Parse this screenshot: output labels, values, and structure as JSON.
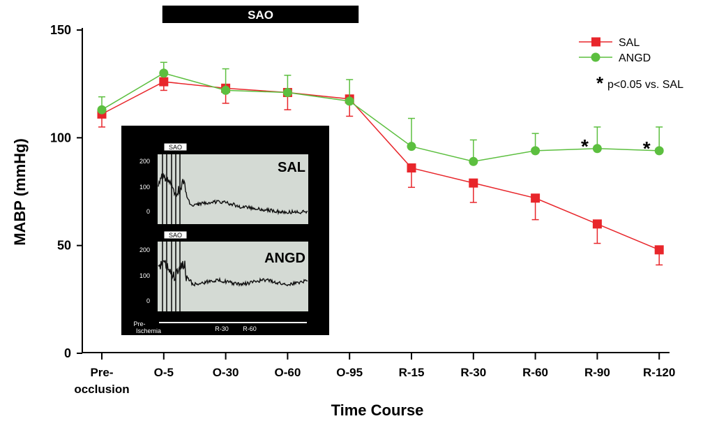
{
  "chart_data": {
    "type": "line",
    "title": "",
    "xlabel": "Time Course",
    "ylabel": "MABP (mmHg)",
    "ylim": [
      0,
      150
    ],
    "yticks": [
      "0",
      "50",
      "100",
      "150"
    ],
    "categories": [
      [
        "Pre-",
        "occlusion"
      ],
      [
        "O-5"
      ],
      [
        "O-30"
      ],
      [
        "O-60"
      ],
      [
        "O-95"
      ],
      [
        "R-15"
      ],
      [
        "R-30"
      ],
      [
        "R-60"
      ],
      [
        "R-90"
      ],
      [
        "R-120"
      ]
    ],
    "occlusion_bar": {
      "label": "SAO",
      "from_index": 1,
      "to_index": 4
    },
    "legend": {
      "placement": "top-right",
      "significance_note": "p<0.05 vs. SAL",
      "asterisk": "*"
    },
    "significant_indices": [
      8,
      9
    ],
    "series": [
      {
        "name": "SAL",
        "color": "#e8262b",
        "marker": "square",
        "values": [
          111,
          126,
          123,
          121,
          118,
          86,
          79,
          72,
          60,
          48
        ],
        "error": [
          6,
          4,
          7,
          8,
          8,
          9,
          9,
          10,
          9,
          7
        ]
      },
      {
        "name": "ANGD",
        "color": "#5cbf3f",
        "marker": "circle",
        "values": [
          113,
          130,
          122,
          121,
          117,
          96,
          89,
          94,
          95,
          94
        ],
        "error": [
          6,
          5,
          10,
          8,
          10,
          13,
          10,
          8,
          10,
          11
        ]
      }
    ]
  },
  "inset": {
    "panels": [
      {
        "title": "SAL",
        "tag": "SAO",
        "yticks": [
          "200",
          "100",
          "0"
        ]
      },
      {
        "title": "ANGD",
        "tag": "SAO",
        "yticks": [
          "200",
          "100",
          "0"
        ]
      }
    ],
    "x_labels": {
      "pre_line1": "Pre-",
      "pre_line2": "Ischemia",
      "r30": "R-30",
      "r60": "R-60"
    },
    "colors": {
      "background": "#000000",
      "trace_area": "#d4dad4",
      "trace": "#111111"
    }
  }
}
